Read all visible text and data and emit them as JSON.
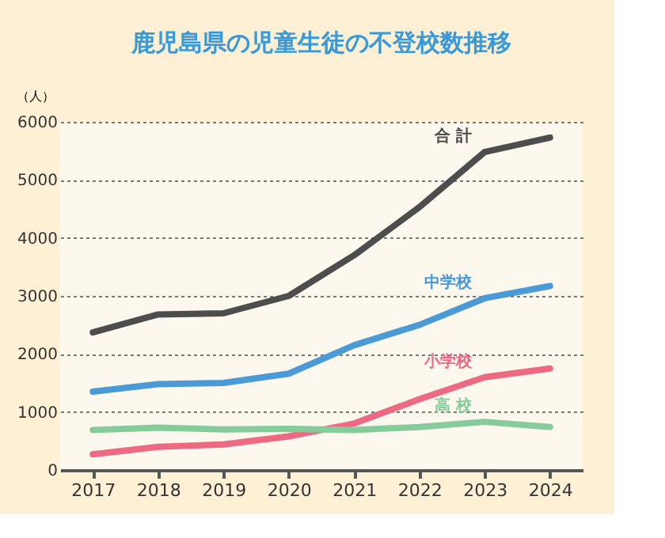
{
  "chart_data": {
    "type": "line",
    "title": "鹿児島県の児童生徒の不登校数推移",
    "ylabel": "（人）",
    "categories": [
      "2017",
      "2018",
      "2019",
      "2020",
      "2021",
      "2022",
      "2023",
      "2024"
    ],
    "series": [
      {
        "name": "合 計",
        "color": "#4d4d4d",
        "values": [
          2370,
          2680,
          2700,
          3000,
          3700,
          4530,
          5480,
          5730
        ]
      },
      {
        "name": "中学校",
        "color": "#4a9ad8",
        "values": [
          1350,
          1480,
          1500,
          1660,
          2150,
          2500,
          2960,
          3170
        ]
      },
      {
        "name": "小学校",
        "color": "#ee6a82",
        "values": [
          270,
          400,
          440,
          580,
          800,
          1220,
          1600,
          1750
        ]
      },
      {
        "name": "高 校",
        "color": "#85cc9a",
        "values": [
          690,
          730,
          700,
          710,
          690,
          740,
          830,
          740
        ]
      }
    ],
    "ylim": [
      0,
      6000
    ],
    "yticks": [
      0,
      1000,
      2000,
      3000,
      4000,
      5000,
      6000
    ],
    "grid": "y",
    "legend": false,
    "marker": "none",
    "line_style": "solid"
  }
}
